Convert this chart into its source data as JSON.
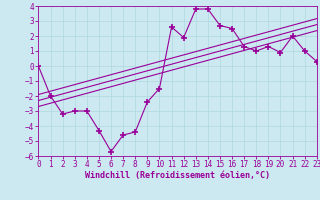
{
  "x": [
    0,
    1,
    2,
    3,
    4,
    5,
    6,
    7,
    8,
    9,
    10,
    11,
    12,
    13,
    14,
    15,
    16,
    17,
    18,
    19,
    20,
    21,
    22,
    23
  ],
  "y_main": [
    0,
    -2,
    -3.2,
    -3,
    -3,
    -4.3,
    -5.7,
    -4.6,
    -4.4,
    -2.4,
    -1.5,
    2.6,
    1.9,
    3.8,
    3.8,
    2.7,
    2.5,
    1.3,
    1.0,
    1.3,
    0.9,
    2.0,
    1.0,
    0.3
  ],
  "y_reg1": [
    -2.3,
    -2.08,
    -1.86,
    -1.64,
    -1.42,
    -1.2,
    -0.98,
    -0.76,
    -0.54,
    -0.32,
    -0.1,
    0.12,
    0.34,
    0.56,
    0.78,
    1.0,
    1.22,
    1.44,
    1.66,
    1.88,
    2.1,
    2.32,
    2.54,
    2.76
  ],
  "y_reg2": [
    -2.7,
    -2.48,
    -2.26,
    -2.04,
    -1.82,
    -1.6,
    -1.38,
    -1.16,
    -0.94,
    -0.72,
    -0.5,
    -0.28,
    -0.06,
    0.16,
    0.38,
    0.6,
    0.82,
    1.04,
    1.26,
    1.48,
    1.7,
    1.92,
    2.14,
    2.36
  ],
  "y_reg3": [
    -1.9,
    -1.68,
    -1.46,
    -1.24,
    -1.02,
    -0.8,
    -0.58,
    -0.36,
    -0.14,
    0.08,
    0.3,
    0.52,
    0.74,
    0.96,
    1.18,
    1.4,
    1.62,
    1.84,
    2.06,
    2.28,
    2.5,
    2.72,
    2.94,
    3.16
  ],
  "xlim": [
    0,
    23
  ],
  "ylim": [
    -6,
    4
  ],
  "xlabel": "Windchill (Refroidissement éolien,°C)",
  "yticks": [
    -6,
    -5,
    -4,
    -3,
    -2,
    -1,
    0,
    1,
    2,
    3,
    4
  ],
  "xticks": [
    0,
    1,
    2,
    3,
    4,
    5,
    6,
    7,
    8,
    9,
    10,
    11,
    12,
    13,
    14,
    15,
    16,
    17,
    18,
    19,
    20,
    21,
    22,
    23
  ],
  "line_color": "#990099",
  "bg_color": "#cce8f0",
  "grid_color": "#b0d8e0",
  "marker": "+",
  "marker_size": 4,
  "marker_lw": 1.2,
  "line_width": 0.8,
  "xlabel_fontsize": 6,
  "tick_fontsize": 5.5
}
